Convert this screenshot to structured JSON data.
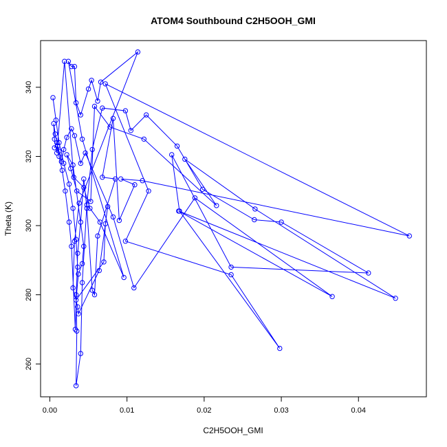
{
  "chart_data": {
    "type": "line",
    "title": "ATOM4 Southbound C2H5OOH_GMI",
    "xlabel": "C2H5OOH_GMI",
    "ylabel": "Theta (K)",
    "xlim": [
      -0.0012,
      0.0488
    ],
    "ylim": [
      250.5,
      353.5
    ],
    "x_ticks": [
      0.0,
      0.01,
      0.02,
      0.03,
      0.04
    ],
    "x_tick_labels": [
      "0.00",
      "0.01",
      "0.02",
      "0.03",
      "0.04"
    ],
    "y_ticks": [
      260,
      280,
      300,
      320,
      340
    ],
    "y_tick_labels": [
      "260",
      "280",
      "300",
      "320",
      "340"
    ],
    "grid": false,
    "series": [
      {
        "color": "#0000ff",
        "marker": "open-circle",
        "points": [
          [
            0.0004,
            337.0
          ],
          [
            0.0008,
            330.5
          ],
          [
            0.0012,
            324.0
          ],
          [
            0.0018,
            318.0
          ],
          [
            0.0025,
            312.0
          ],
          [
            0.003,
            305.0
          ],
          [
            0.0034,
            296.0
          ],
          [
            0.0036,
            288.0
          ],
          [
            0.0034,
            280.0
          ],
          [
            0.0035,
            269.5
          ],
          [
            0.0034,
            253.7
          ],
          [
            0.004,
            263.0
          ],
          [
            0.0042,
            283.5
          ],
          [
            0.0048,
            306.0
          ],
          [
            0.0055,
            322.0
          ],
          [
            0.0068,
            334.0
          ],
          [
            0.0098,
            333.2
          ],
          [
            0.0105,
            327.5
          ],
          [
            0.0125,
            332.0
          ],
          [
            0.0165,
            323.0
          ],
          [
            0.0198,
            310.5
          ],
          [
            0.0265,
            301.7
          ],
          [
            0.03,
            301.0
          ],
          [
            0.0413,
            286.3
          ],
          [
            0.0235,
            288.0
          ],
          [
            0.0158,
            320.5
          ],
          [
            0.0168,
            304.2
          ],
          [
            0.0298,
            264.5
          ],
          [
            0.0235,
            285.8
          ],
          [
            0.0098,
            295.5
          ],
          [
            0.0128,
            310.0
          ],
          [
            0.0072,
            341.0
          ],
          [
            0.0466,
            297.0
          ],
          [
            0.012,
            313.0
          ],
          [
            0.0092,
            313.5
          ],
          [
            0.011,
            311.8
          ],
          [
            0.009,
            301.5
          ],
          [
            0.0082,
            331.0
          ],
          [
            0.0068,
            314.0
          ],
          [
            0.0085,
            313.5
          ],
          [
            0.0062,
            297.0
          ],
          [
            0.0058,
            280.0
          ],
          [
            0.0055,
            281.3
          ],
          [
            0.0048,
            305.0
          ],
          [
            0.0044,
            313.5
          ],
          [
            0.004,
            301.0
          ],
          [
            0.0036,
            292.0
          ],
          [
            0.0033,
            270.0
          ],
          [
            0.0028,
            294.0
          ],
          [
            0.0025,
            301.0
          ],
          [
            0.002,
            310.0
          ],
          [
            0.0016,
            316.0
          ],
          [
            0.0012,
            320.0
          ],
          [
            0.001,
            323.0
          ],
          [
            0.0007,
            326.5
          ],
          [
            0.0005,
            329.5
          ],
          [
            0.0006,
            325.0
          ],
          [
            0.0009,
            321.0
          ],
          [
            0.0019,
            347.5
          ],
          [
            0.0031,
            314.0
          ],
          [
            0.0044,
            311.0
          ],
          [
            0.0052,
            305.0
          ],
          [
            0.0065,
            301.0
          ],
          [
            0.0096,
            285.0
          ],
          [
            0.0042,
            325.0
          ],
          [
            0.0024,
            347.5
          ],
          [
            0.0028,
            346.0
          ],
          [
            0.0032,
            346.0
          ],
          [
            0.0034,
            335.5
          ],
          [
            0.004,
            332.0
          ],
          [
            0.005,
            339.5
          ],
          [
            0.0054,
            342.0
          ],
          [
            0.0062,
            336.0
          ],
          [
            0.0066,
            341.5
          ],
          [
            0.0114,
            350.2
          ],
          [
            0.0038,
            306.5
          ],
          [
            0.0032,
            295.5
          ],
          [
            0.003,
            282.0
          ],
          [
            0.0036,
            276.5
          ],
          [
            0.0037,
            274.5
          ],
          [
            0.0064,
            287.0
          ],
          [
            0.0075,
            305.5
          ],
          [
            0.0072,
            300.5
          ],
          [
            0.007,
            289.5
          ],
          [
            0.0034,
            278.5
          ],
          [
            0.0037,
            286.0
          ],
          [
            0.0042,
            289.0
          ],
          [
            0.0044,
            294.0
          ],
          [
            0.003,
            317.5
          ],
          [
            0.0022,
            320.5
          ],
          [
            0.0027,
            316.5
          ],
          [
            0.0035,
            310.0
          ],
          [
            0.0053,
            307.0
          ],
          [
            0.0058,
            334.5
          ],
          [
            0.0078,
            328.5
          ],
          [
            0.0122,
            325.0
          ],
          [
            0.0216,
            305.8
          ],
          [
            0.0175,
            319.2
          ],
          [
            0.0266,
            304.8
          ],
          [
            0.0448,
            279.0
          ],
          [
            0.0167,
            304.2
          ],
          [
            0.0366,
            279.5
          ],
          [
            0.0188,
            308.0
          ],
          [
            0.0109,
            282.0
          ],
          [
            0.0082,
            302.5
          ],
          [
            0.0046,
            321.0
          ],
          [
            0.004,
            318.0
          ],
          [
            0.0032,
            326.0
          ],
          [
            0.0028,
            328.0
          ],
          [
            0.0022,
            325.5
          ],
          [
            0.0018,
            322.0
          ],
          [
            0.0015,
            318.5
          ],
          [
            0.0012,
            321.5
          ],
          [
            0.0009,
            324.0
          ],
          [
            0.0006,
            322.5
          ]
        ]
      }
    ]
  }
}
